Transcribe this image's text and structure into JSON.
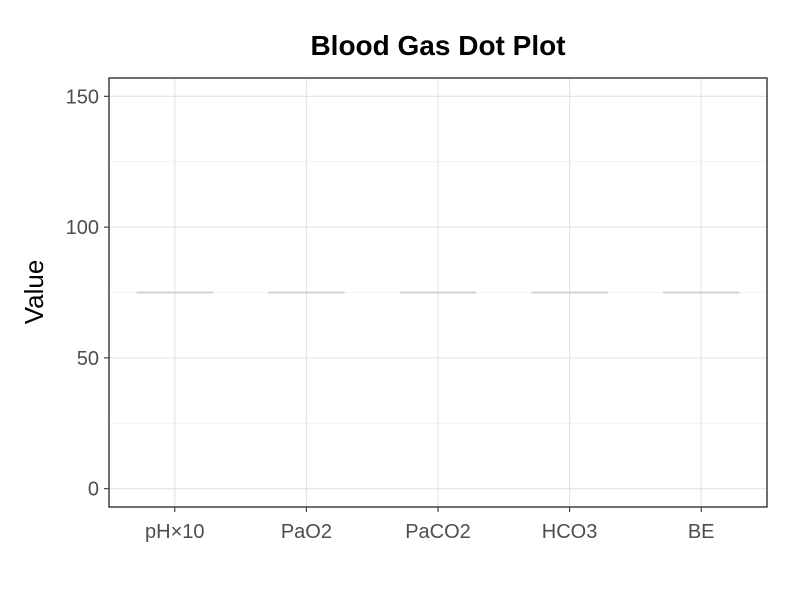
{
  "chart_data": {
    "type": "line",
    "title": "Blood Gas Dot Plot",
    "xlabel": "",
    "ylabel": "Value",
    "categories": [
      "pH×10",
      "PaO2",
      "PaCO2",
      "HCO3",
      "BE"
    ],
    "values": [
      75,
      75,
      75,
      75,
      75
    ],
    "ylim": [
      -7,
      157
    ],
    "yticks": [
      0,
      50,
      100,
      150
    ],
    "y_minor_ticks": [
      25,
      75,
      125
    ],
    "grid": true,
    "legend": "none",
    "colors": {
      "mark": "#d3d3d3",
      "grid": "#e3e3e3",
      "axis": "#333333"
    }
  }
}
